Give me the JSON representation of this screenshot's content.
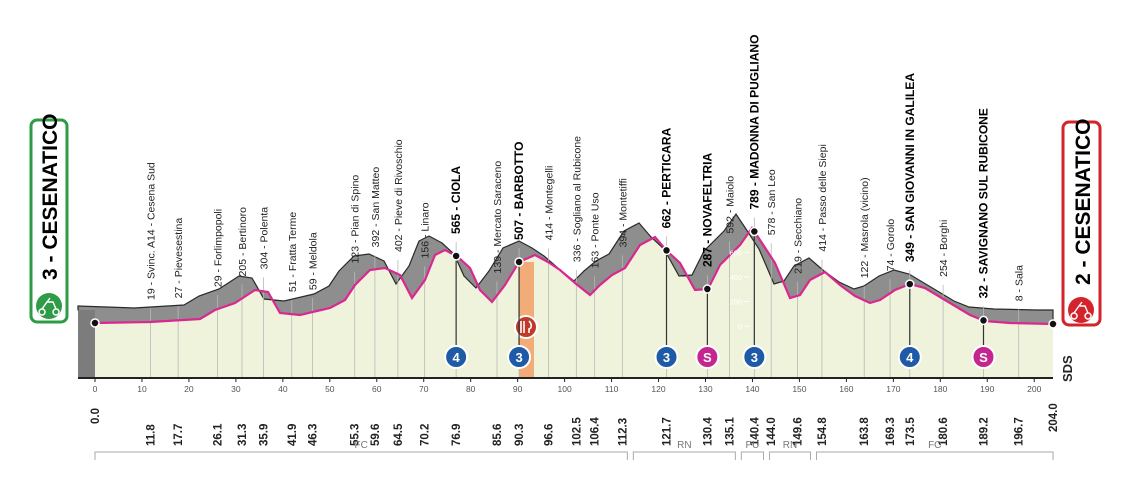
{
  "start": {
    "label": "3 - CESENATICO",
    "km": "0.0"
  },
  "finish": {
    "label": "2 - CESENATICO",
    "km": "204.0"
  },
  "waypoints": [
    {
      "label": "19 - Svinc. A14 - Cesena Sud",
      "km": "11.8"
    },
    {
      "label": "27 - Pievesestina",
      "km": "17.7"
    },
    {
      "label": "29 - Forlimpopoli",
      "km": "26.1"
    },
    {
      "label": "205 - Bertinoro",
      "km": "31.3"
    },
    {
      "label": "304 - Polenta",
      "km": "35.9"
    },
    {
      "label": "51 - Fratta Terme",
      "km": "41.9"
    },
    {
      "label": "59 - Meldola",
      "km": "46.3"
    },
    {
      "label": "123 - Pian di Spino",
      "km": "55.3"
    },
    {
      "label": "392 - San Matteo",
      "km": "59.6"
    },
    {
      "label": "402 - Pieve di Rivoschio",
      "km": "64.5"
    },
    {
      "label": "156 - Linaro",
      "km": "70.2"
    },
    {
      "label": "565 - CIOLA",
      "km": "76.9",
      "bold": true,
      "badge": "4"
    },
    {
      "label": "139 - Mercato Saraceno",
      "km": "85.6"
    },
    {
      "label": "507 - BARBOTTO",
      "km": "90.3",
      "bold": true,
      "badge": "3"
    },
    {
      "label": "414 - Montegelli",
      "km": "96.6"
    },
    {
      "label": "336 - Sogliano al Rubicone",
      "km": "102.5"
    },
    {
      "label": "163 - Ponte Uso",
      "km": "106.4"
    },
    {
      "label": "394 - Montetiffi",
      "km": "112.3"
    },
    {
      "label": "662 - PERTICARA",
      "km": "121.7",
      "bold": true,
      "badge": "3"
    },
    {
      "label": "287 - NOVAFELTRIA",
      "km": "130.4",
      "bold": true,
      "badge": "S"
    },
    {
      "label": "592 - Maiolo",
      "km": "135.1"
    },
    {
      "label": "789 - MADONNA DI PUGLIANO",
      "km": "140.4",
      "bold": true,
      "badge": "3"
    },
    {
      "label": "578 - San Leo",
      "km": "144.0"
    },
    {
      "label": "219 - Secchiano",
      "km": "149.6"
    },
    {
      "label": "414 - Passo delle Siepi",
      "km": "154.8"
    },
    {
      "label": "122 - Masrola (vicino)",
      "km": "163.8"
    },
    {
      "label": "74 - Gorolo",
      "km": "169.3"
    },
    {
      "label": "349 - SAN GIOVANNI IN GALILEA",
      "km": "173.5",
      "bold": true,
      "badge": "4"
    },
    {
      "label": "254 - Borghi",
      "km": "180.6"
    },
    {
      "label": "32 - SAVIGNANO SUL RUBICONE",
      "km": "189.2",
      "bold": true,
      "badge": "S"
    },
    {
      "label": "8 - Sala",
      "km": "196.7"
    }
  ],
  "km_ticks": [
    0,
    10,
    20,
    30,
    40,
    50,
    60,
    70,
    80,
    90,
    100,
    110,
    120,
    130,
    140,
    150,
    160,
    170,
    180,
    190,
    200
  ],
  "altitude_scale": [
    "600",
    "400",
    "200",
    "0"
  ],
  "road_types": [
    "FC",
    "RN",
    "PU",
    "RN",
    "FC"
  ],
  "logo": "SDS"
}
